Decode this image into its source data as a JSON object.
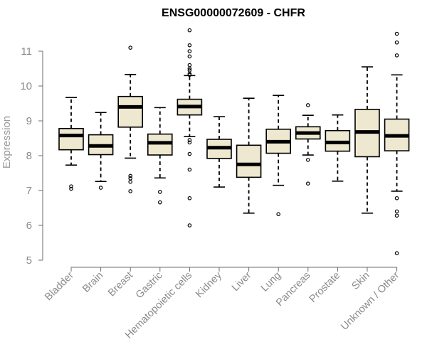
{
  "chart_data": {
    "type": "boxplot",
    "title": "ENSG00000072609 - CHFR",
    "xlabel": "",
    "ylabel": "Expression",
    "ylim": [
      5,
      11.7
    ],
    "yticks": [
      5,
      6,
      7,
      8,
      9,
      10,
      11
    ],
    "grid": false,
    "box_color": "#eee8d0",
    "categories": [
      "Bladder",
      "Brain",
      "Breast",
      "Gastric",
      "Hematopoietic cells",
      "Kidney",
      "Liver",
      "Lung",
      "Pancreas",
      "Prostate",
      "Skin",
      "Unknown / Other"
    ],
    "boxes": [
      {
        "q1": 8.17,
        "median": 8.58,
        "q3": 8.78,
        "whisker_low": 7.73,
        "whisker_high": 9.67,
        "outliers": [
          7.12,
          7.05
        ]
      },
      {
        "q1": 8.03,
        "median": 8.28,
        "q3": 8.6,
        "whisker_low": 7.26,
        "whisker_high": 9.24,
        "outliers": [
          7.08
        ]
      },
      {
        "q1": 8.82,
        "median": 9.4,
        "q3": 9.7,
        "whisker_low": 7.93,
        "whisker_high": 10.33,
        "outliers": [
          11.1,
          7.42,
          7.35,
          7.25,
          6.98
        ]
      },
      {
        "q1": 8.02,
        "median": 8.37,
        "q3": 8.62,
        "whisker_low": 7.36,
        "whisker_high": 9.38,
        "outliers": [
          6.96,
          6.66
        ]
      },
      {
        "q1": 9.17,
        "median": 9.41,
        "q3": 9.62,
        "whisker_low": 8.55,
        "whisker_high": 10.3,
        "outliers": [
          11.6,
          11.17,
          11.0,
          10.85,
          10.6,
          10.5,
          10.45,
          10.35,
          10.32,
          8.45,
          8.38,
          8.05,
          7.6,
          6.78,
          6.0
        ]
      },
      {
        "q1": 7.92,
        "median": 8.23,
        "q3": 8.47,
        "whisker_low": 7.1,
        "whisker_high": 9.12,
        "outliers": []
      },
      {
        "q1": 7.38,
        "median": 7.75,
        "q3": 8.3,
        "whisker_low": 6.35,
        "whisker_high": 9.65,
        "outliers": []
      },
      {
        "q1": 8.07,
        "median": 8.4,
        "q3": 8.76,
        "whisker_low": 7.15,
        "whisker_high": 9.73,
        "outliers": [
          6.32
        ]
      },
      {
        "q1": 8.48,
        "median": 8.65,
        "q3": 8.83,
        "whisker_low": 8.02,
        "whisker_high": 9.16,
        "outliers": [
          9.45,
          7.88,
          7.2
        ]
      },
      {
        "q1": 8.13,
        "median": 8.38,
        "q3": 8.72,
        "whisker_low": 7.27,
        "whisker_high": 9.17,
        "outliers": []
      },
      {
        "q1": 7.97,
        "median": 8.68,
        "q3": 9.33,
        "whisker_low": 6.35,
        "whisker_high": 10.55,
        "outliers": []
      },
      {
        "q1": 8.14,
        "median": 8.57,
        "q3": 9.05,
        "whisker_low": 6.98,
        "whisker_high": 10.32,
        "outliers": [
          11.5,
          11.25,
          10.88,
          6.78,
          6.4,
          6.28,
          5.2
        ]
      }
    ]
  }
}
